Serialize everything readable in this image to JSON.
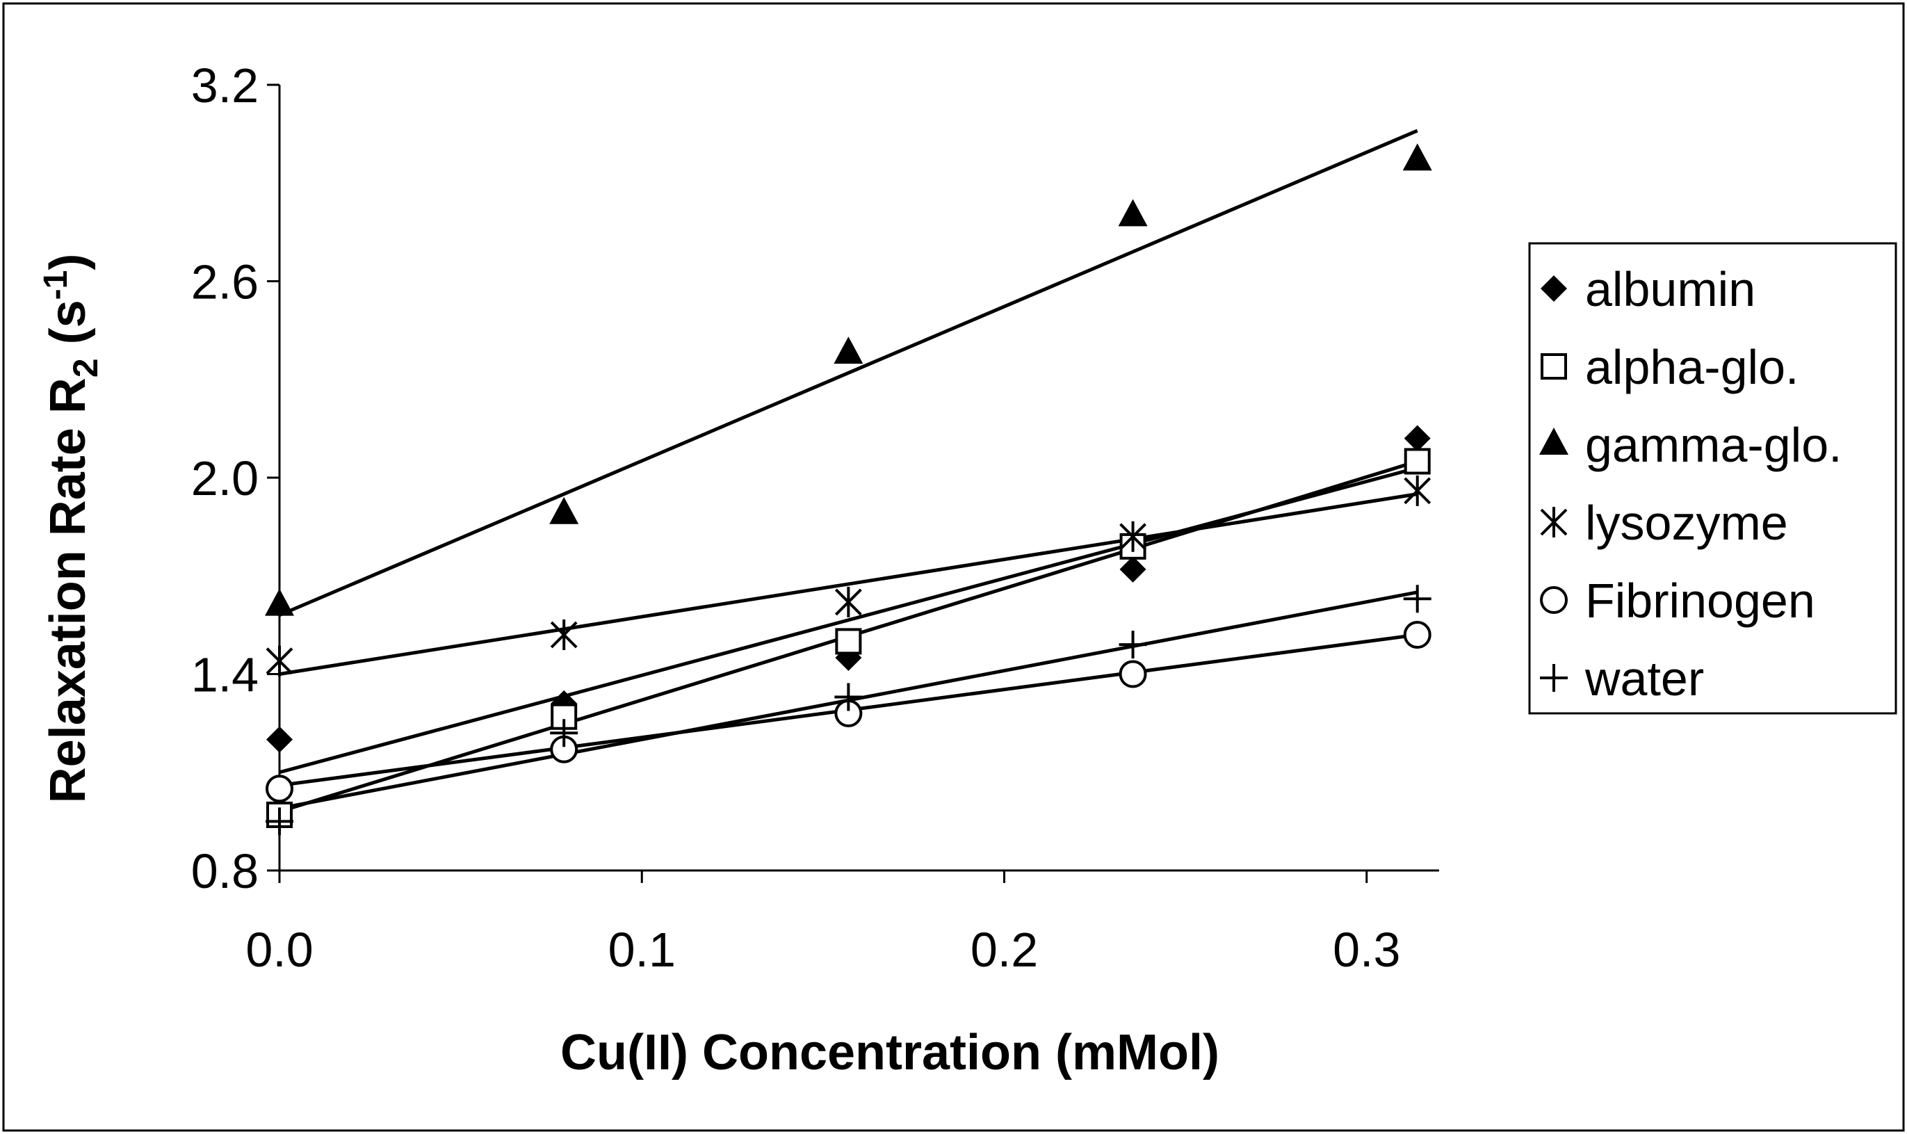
{
  "chart_data": {
    "type": "scatter",
    "title": "",
    "xlabel": "Cu(II) Concentration (mMol)",
    "ylabel_main": "Relaxation Rate R",
    "ylabel_sub": "2",
    "ylabel_unit": " (s",
    "ylabel_sup": "-1",
    "ylabel_close": ")",
    "xlim": [
      0,
      0.32
    ],
    "ylim": [
      0.8,
      3.2
    ],
    "xticks": [
      0.0,
      0.1,
      0.2,
      0.3
    ],
    "xtick_labels": [
      "0.0",
      "0.1",
      "0.2",
      "0.3"
    ],
    "yticks": [
      0.8,
      1.4,
      2.0,
      2.6,
      3.2
    ],
    "ytick_labels": [
      "0.8",
      "1.4",
      "2.0",
      "2.6",
      "3.2"
    ],
    "legend_position": "right",
    "x": [
      0.0,
      0.0785,
      0.157,
      0.2355,
      0.314
    ],
    "series": [
      {
        "name": "albumin",
        "marker": "diamond",
        "values": [
          1.2,
          1.31,
          1.45,
          1.72,
          2.12
        ],
        "fit": [
          1.1,
          2.03
        ]
      },
      {
        "name": "alpha-glo.",
        "marker": "square",
        "values": [
          0.97,
          1.27,
          1.5,
          1.79,
          2.05
        ],
        "fit": [
          0.98,
          2.05
        ]
      },
      {
        "name": "gamma-glo.",
        "marker": "triangle",
        "values": [
          1.61,
          1.89,
          2.38,
          2.8,
          2.97
        ],
        "fit": [
          1.58,
          3.06
        ]
      },
      {
        "name": "lysozyme",
        "marker": "star",
        "values": [
          1.44,
          1.52,
          1.62,
          1.82,
          1.96
        ],
        "fit": [
          1.4,
          1.95
        ]
      },
      {
        "name": "Fibrinogen",
        "marker": "circle",
        "values": [
          1.05,
          1.17,
          1.28,
          1.4,
          1.52
        ],
        "fit": [
          1.06,
          1.52
        ]
      },
      {
        "name": "water",
        "marker": "plus",
        "values": [
          0.95,
          1.22,
          1.33,
          1.49,
          1.63
        ],
        "fit": [
          0.99,
          1.65
        ]
      }
    ]
  }
}
